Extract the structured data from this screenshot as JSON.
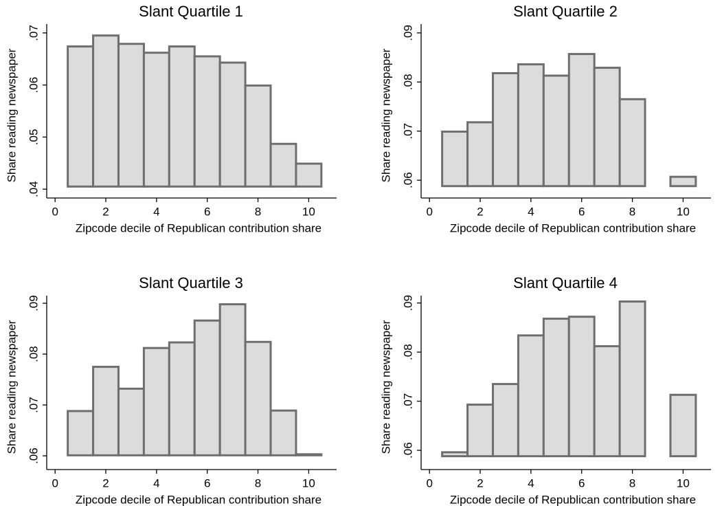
{
  "chart_data": [
    {
      "type": "bar",
      "title": "Slant Quartile 1",
      "x_label": "Zipcode decile of Republican contribution share",
      "y_label": "Share reading newspaper",
      "x": [
        1,
        2,
        3,
        4,
        5,
        6,
        7,
        8,
        9,
        10
      ],
      "values": [
        0.0674,
        0.0695,
        0.0679,
        0.0662,
        0.0674,
        0.0655,
        0.0643,
        0.0599,
        0.0487,
        0.0449
      ],
      "bar_base": 0.0405,
      "color": "#dcdcdc",
      "edge_color": "#6e6e6e",
      "xlim": [
        -0.33,
        11.1
      ],
      "xticks": [
        0,
        2,
        4,
        6,
        8,
        10
      ],
      "ylim": [
        0.0387,
        0.0717
      ],
      "yticks": [
        {
          "value": 0.04,
          "label": ".04"
        },
        {
          "value": 0.05,
          "label": ".05"
        },
        {
          "value": 0.06,
          "label": ".06"
        },
        {
          "value": 0.07,
          "label": ".07"
        }
      ]
    },
    {
      "type": "bar",
      "title": "Slant Quartile 2",
      "x_label": "Zipcode decile of Republican contribution share",
      "y_label": "Share reading newspaper",
      "x": [
        1,
        2,
        3,
        4,
        5,
        6,
        7,
        8,
        9,
        10
      ],
      "values": [
        0.0699,
        0.0718,
        0.0818,
        0.0836,
        0.0813,
        0.0857,
        0.0829,
        0.0765,
        null,
        0.0607
      ],
      "bar_base": 0.0588,
      "color": "#dcdcdc",
      "edge_color": "#6e6e6e",
      "xlim": [
        -0.33,
        11.1
      ],
      "xticks": [
        0,
        2,
        4,
        6,
        8,
        10
      ],
      "ylim": [
        0.0568,
        0.0918
      ],
      "yticks": [
        {
          "value": 0.06,
          "label": ".06"
        },
        {
          "value": 0.07,
          "label": ".07"
        },
        {
          "value": 0.08,
          "label": ".08"
        },
        {
          "value": 0.09,
          "label": ".09"
        }
      ]
    },
    {
      "type": "bar",
      "title": "Slant Quartile 3",
      "x_label": "Zipcode decile of Republican contribution share",
      "y_label": "Share reading newspaper",
      "x": [
        1,
        2,
        3,
        4,
        5,
        6,
        7,
        8,
        9,
        10
      ],
      "values": [
        0.0688,
        0.0775,
        0.0732,
        0.0812,
        0.0823,
        0.0866,
        0.0898,
        0.0824,
        0.0689,
        0.0603
      ],
      "bar_base": 0.0601,
      "color": "#dcdcdc",
      "edge_color": "#6e6e6e",
      "xlim": [
        -0.33,
        11.1
      ],
      "xticks": [
        0,
        2,
        4,
        6,
        8,
        10
      ],
      "ylim": [
        0.0577,
        0.0915
      ],
      "yticks": [
        {
          "value": 0.06,
          "label": ".06"
        },
        {
          "value": 0.07,
          "label": ".07"
        },
        {
          "value": 0.08,
          "label": ".08"
        },
        {
          "value": 0.09,
          "label": ".09"
        }
      ]
    },
    {
      "type": "bar",
      "title": "Slant Quartile 4",
      "x_label": "Zipcode decile of Republican contribution share",
      "y_label": "Share reading newspaper",
      "x": [
        1,
        2,
        3,
        4,
        5,
        6,
        7,
        8,
        9,
        10
      ],
      "values": [
        0.0596,
        0.0693,
        0.0735,
        0.0834,
        0.0868,
        0.0872,
        0.0812,
        0.0903,
        null,
        0.0713
      ],
      "bar_base": 0.0588,
      "color": "#dcdcdc",
      "edge_color": "#6e6e6e",
      "xlim": [
        -0.33,
        11.1
      ],
      "xticks": [
        0,
        2,
        4,
        6,
        8,
        10
      ],
      "ylim": [
        0.0565,
        0.0915
      ],
      "yticks": [
        {
          "value": 0.06,
          "label": ".06"
        },
        {
          "value": 0.07,
          "label": ".07"
        },
        {
          "value": 0.08,
          "label": ".08"
        },
        {
          "value": 0.09,
          "label": ".09"
        }
      ]
    }
  ]
}
